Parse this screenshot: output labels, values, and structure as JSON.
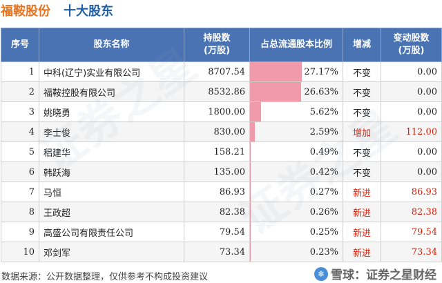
{
  "title": {
    "company": "福鞍股份",
    "section": "十大股东"
  },
  "table": {
    "headers": {
      "rank": "序号",
      "name": "股东名称",
      "shares": "持股数\n(万股)",
      "ratio": "占总流通股本比例",
      "change": "增减",
      "delta": "变动股数\n(万股)"
    },
    "rows": [
      {
        "rank": "1",
        "name": "中科(辽宁)实业有限公司",
        "shares": "8707.54",
        "ratio": "27.17%",
        "ratio_value": 27.17,
        "change": "不变",
        "change_up": false,
        "delta": "0.00"
      },
      {
        "rank": "2",
        "name": "福鞍控股有限公司",
        "shares": "8532.86",
        "ratio": "26.63%",
        "ratio_value": 26.63,
        "change": "不变",
        "change_up": false,
        "delta": "0.00"
      },
      {
        "rank": "3",
        "name": "姚晓勇",
        "shares": "1800.00",
        "ratio": "5.62%",
        "ratio_value": 5.62,
        "change": "不变",
        "change_up": false,
        "delta": "0.00"
      },
      {
        "rank": "4",
        "name": "李士俊",
        "shares": "830.00",
        "ratio": "2.59%",
        "ratio_value": 2.59,
        "change": "增加",
        "change_up": true,
        "delta": "112.00"
      },
      {
        "rank": "5",
        "name": "稆建华",
        "shares": "158.21",
        "ratio": "0.49%",
        "ratio_value": 0.49,
        "change": "不变",
        "change_up": false,
        "delta": "0.00"
      },
      {
        "rank": "6",
        "name": "韩跃海",
        "shares": "135.00",
        "ratio": "0.42%",
        "ratio_value": 0.42,
        "change": "不变",
        "change_up": false,
        "delta": "0.00"
      },
      {
        "rank": "7",
        "name": "马恒",
        "shares": "86.93",
        "ratio": "0.27%",
        "ratio_value": 0.27,
        "change": "新进",
        "change_up": true,
        "delta": "86.93"
      },
      {
        "rank": "8",
        "name": "王政超",
        "shares": "82.38",
        "ratio": "0.26%",
        "ratio_value": 0.26,
        "change": "新进",
        "change_up": true,
        "delta": "82.38"
      },
      {
        "rank": "9",
        "name": "高盛公司有限责任公司",
        "shares": "79.54",
        "ratio": "0.25%",
        "ratio_value": 0.25,
        "change": "新进",
        "change_up": true,
        "delta": "79.54"
      },
      {
        "rank": "10",
        "name": "邓剑军",
        "shares": "73.34",
        "ratio": "0.23%",
        "ratio_value": 0.23,
        "change": "新进",
        "change_up": true,
        "delta": "73.34"
      }
    ]
  },
  "colors": {
    "header_bg": "#4a73b4",
    "bar": "#f19aaa",
    "up_text": "#d81e06",
    "title_company": "#e8731d",
    "title_section": "#1f5fa6"
  },
  "watermark": "证券之星",
  "footer": {
    "source": "数据来源：公开数据整理，仅供参考不构成投资建议"
  },
  "brand": {
    "logo_icon": "snowball-logo-icon",
    "text": "雪球：证券之星财经"
  }
}
